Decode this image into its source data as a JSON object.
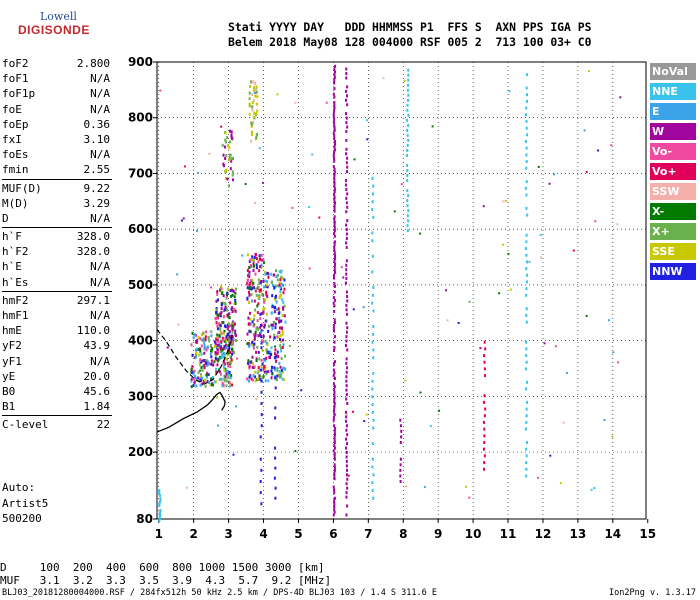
{
  "logo": {
    "line1": "Lowell",
    "line2": "DIGISONDE"
  },
  "header": {
    "row1": "Stati YYYY DAY   DDD HHMMSS P1  FFS S  AXN PPS IGA PS",
    "row2": "Belem 2018 May08 128 004000 RSF 005 2  713 100 03+ C0"
  },
  "parameters": [
    [
      {
        "k": "foF2",
        "v": "2.800"
      },
      {
        "k": "foF1",
        "v": "N/A"
      },
      {
        "k": "foF1p",
        "v": "N/A"
      },
      {
        "k": "foE",
        "v": "N/A"
      },
      {
        "k": "foEp",
        "v": "0.36"
      },
      {
        "k": "fxI",
        "v": "3.10"
      },
      {
        "k": "foEs",
        "v": "N/A"
      },
      {
        "k": "fmin",
        "v": "2.55"
      }
    ],
    [
      {
        "k": "MUF(D)",
        "v": "9.22"
      },
      {
        "k": "M(D)",
        "v": "3.29"
      },
      {
        "k": "D",
        "v": "N/A"
      }
    ],
    [
      {
        "k": "h`F",
        "v": "328.0"
      },
      {
        "k": "h`F2",
        "v": "328.0"
      },
      {
        "k": "h`E",
        "v": "N/A"
      },
      {
        "k": "h`Es",
        "v": "N/A"
      }
    ],
    [
      {
        "k": "hmF2",
        "v": "297.1"
      },
      {
        "k": "hmF1",
        "v": "N/A"
      },
      {
        "k": "hmE",
        "v": "110.0"
      },
      {
        "k": "yF2",
        "v": "43.9"
      },
      {
        "k": "yF1",
        "v": "N/A"
      },
      {
        "k": "yE",
        "v": "20.0"
      },
      {
        "k": "B0",
        "v": "45.6"
      },
      {
        "k": "B1",
        "v": "1.84"
      }
    ],
    [
      {
        "k": "C-level",
        "v": "22"
      }
    ]
  ],
  "auto": {
    "line1": "Auto:",
    "line2": "Artist5",
    "line3": "500200"
  },
  "legend": [
    {
      "label": "NoVal",
      "color": "#999999"
    },
    {
      "label": "NNE",
      "color": "#39c3ec"
    },
    {
      "label": "E",
      "color": "#3ba3e8"
    },
    {
      "label": "W",
      "color": "#a0059e"
    },
    {
      "label": "Vo-",
      "color": "#f04aa0"
    },
    {
      "label": "Vo+",
      "color": "#e0005a"
    },
    {
      "label": "SSW",
      "color": "#f4b0a8"
    },
    {
      "label": "X-",
      "color": "#007a00"
    },
    {
      "label": "X+",
      "color": "#6ab04c"
    },
    {
      "label": "SSE",
      "color": "#c8c800"
    },
    {
      "label": "NNW",
      "color": "#2020e0"
    }
  ],
  "bottom": {
    "row1": "D     100  200  400  600  800 1000 1500 3000 [km]",
    "row2": "MUF   3.1  3.2  3.3  3.5  3.9  4.3  5.7  9.2 [MHz]"
  },
  "footer": {
    "left": "BLJ03_20181280004000.RSF / 284fx512h 50 kHz 2.5 km / DPS-4D BLJ03 103 / 1.4 S 311.6 E",
    "right": "Ion2Png v. 1.3.17"
  },
  "chart_data": {
    "type": "scatter",
    "title": "",
    "xlabel": "",
    "ylabel": "",
    "xlim": [
      0.95,
      14.95
    ],
    "ylim": [
      80,
      900
    ],
    "xticks": [
      1,
      2,
      3,
      4,
      5,
      6,
      7,
      8,
      9,
      10,
      11,
      12,
      13,
      14,
      15
    ],
    "yticks": [
      80,
      200,
      300,
      400,
      500,
      600,
      700,
      800,
      900
    ],
    "grid": true,
    "legend_position": "right",
    "traces": {
      "o_trace": {
        "x": [
          0.95,
          1.3,
          1.7,
          2.1,
          2.4,
          2.55,
          2.65,
          2.75,
          2.8,
          2.85,
          2.9,
          2.88,
          2.8
        ],
        "y": [
          236,
          245,
          260,
          272,
          285,
          295,
          303,
          307,
          303,
          297,
          290,
          283,
          275
        ]
      },
      "x_trace": {
        "x": [
          0.95,
          1.2,
          1.5,
          1.8,
          2.05,
          2.3,
          2.55,
          2.8,
          3.0,
          3.1
        ],
        "y": [
          420,
          400,
          370,
          345,
          330,
          322,
          330,
          355,
          385,
          410
        ]
      }
    },
    "clusters": [
      {
        "x": [
          1.9,
          3.1
        ],
        "y": [
          320,
          420
        ],
        "n": 260,
        "colors": [
          "E",
          "W",
          "Vo-",
          "Vo+",
          "X-",
          "X+",
          "SSE",
          "NNW",
          "NNE"
        ]
      },
      {
        "x": [
          2.6,
          3.2
        ],
        "y": [
          380,
          500
        ],
        "n": 140,
        "colors": [
          "W",
          "Vo-",
          "Vo+",
          "X-",
          "X+",
          "SSE",
          "NNW"
        ]
      },
      {
        "x": [
          3.5,
          4.0
        ],
        "y": [
          330,
          560
        ],
        "n": 200,
        "colors": [
          "W",
          "Vo-",
          "Vo+",
          "X-",
          "X+",
          "SSE",
          "NNW",
          "E"
        ]
      },
      {
        "x": [
          4.0,
          4.6
        ],
        "y": [
          330,
          530
        ],
        "n": 180,
        "colors": [
          "NNE",
          "E",
          "W",
          "Vo+",
          "X+",
          "SSE",
          "NNW"
        ]
      },
      {
        "x": [
          2.8,
          3.1
        ],
        "y": [
          680,
          780
        ],
        "n": 40,
        "colors": [
          "SSE",
          "W",
          "X+"
        ]
      },
      {
        "x": [
          3.55,
          3.8
        ],
        "y": [
          750,
          870
        ],
        "n": 45,
        "colors": [
          "SSE",
          "X+",
          "SSW"
        ]
      }
    ],
    "columns": [
      {
        "x": 6.0,
        "y": [
          90,
          895
        ],
        "color": "W",
        "step": 5
      },
      {
        "x": 6.35,
        "y": [
          90,
          895
        ],
        "color": "W",
        "step": 8
      },
      {
        "x": 7.1,
        "y": [
          120,
          700
        ],
        "color": "NNE",
        "step": 14
      },
      {
        "x": 8.1,
        "y": [
          600,
          890
        ],
        "color": "NNE",
        "step": 9
      },
      {
        "x": 11.5,
        "y": [
          160,
          880
        ],
        "color": "NNE",
        "step": 12
      },
      {
        "x": 10.3,
        "y": [
          160,
          400
        ],
        "color": "Vo+",
        "step": 12
      },
      {
        "x": 7.9,
        "y": [
          140,
          260
        ],
        "color": "W",
        "step": 10
      },
      {
        "x": 4.3,
        "y": [
          120,
          500
        ],
        "color": "NNW",
        "step": 18
      },
      {
        "x": 3.9,
        "y": [
          110,
          460
        ],
        "color": "NNW",
        "step": 20
      },
      {
        "x": 1.0,
        "y": [
          80,
          135
        ],
        "color": "NNE",
        "step": 3
      }
    ],
    "scattered": {
      "n": 110,
      "colors": [
        "NNE",
        "E",
        "W",
        "Vo-",
        "Vo+",
        "SSW",
        "X-",
        "X+",
        "SSE",
        "NNW"
      ]
    }
  }
}
